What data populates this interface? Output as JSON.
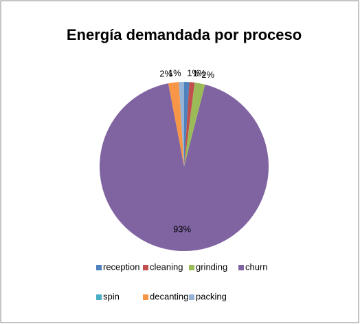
{
  "chart_data": {
    "type": "pie",
    "title": "Energía demandada por proceso",
    "categories": [
      "reception",
      "cleaning",
      "grinding",
      "churn",
      "spin",
      "decanting",
      "packing"
    ],
    "values": [
      1,
      1,
      2,
      93,
      0,
      2,
      1
    ],
    "value_labels": [
      "1%",
      "1%",
      "2%",
      "93%",
      null,
      "2%",
      "1%"
    ],
    "colors": [
      "#4f81bd",
      "#c0504d",
      "#9bbb59",
      "#8064a2",
      "#4bacc6",
      "#f79646",
      "#95b3d7"
    ]
  }
}
